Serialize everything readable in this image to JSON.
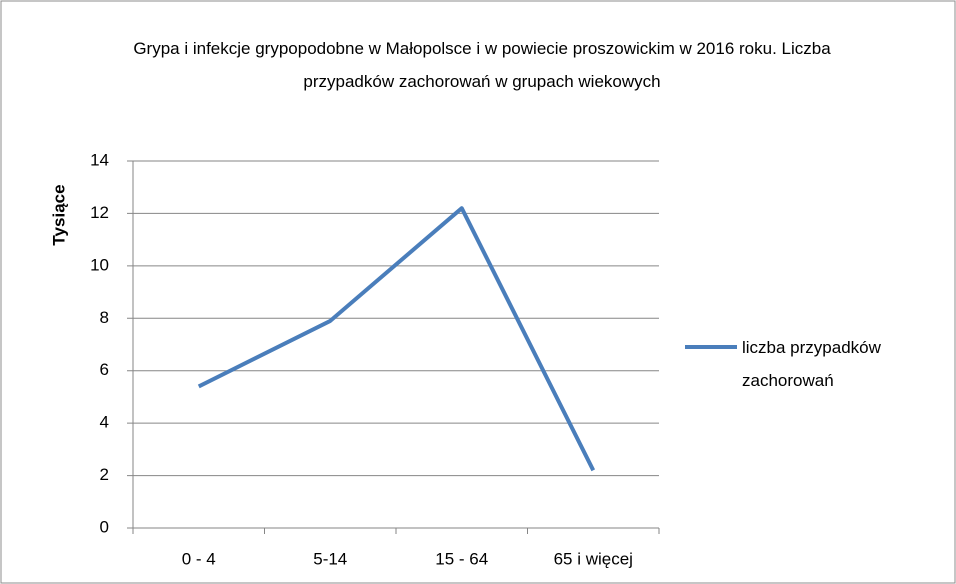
{
  "chart_data": {
    "type": "line",
    "title": "Grypa i infekcje grypopodobne w Małopolsce i w powiecie proszowickim w 2016 roku. Liczba przypadków zachorowań w grupach wiekowych",
    "y_label": "Tysiące",
    "categories": [
      "0 - 4",
      "5-14",
      "15 - 64",
      "65 i więcej"
    ],
    "series": [
      {
        "name": "liczba przypadków zachorowań",
        "color": "#4a7ebb",
        "values": [
          5.4,
          7.9,
          12.2,
          2.2
        ]
      }
    ],
    "ylim": [
      0,
      14
    ],
    "yticks": [
      0,
      2,
      4,
      6,
      8,
      10,
      12,
      14
    ],
    "grid": true,
    "legend": "right"
  }
}
